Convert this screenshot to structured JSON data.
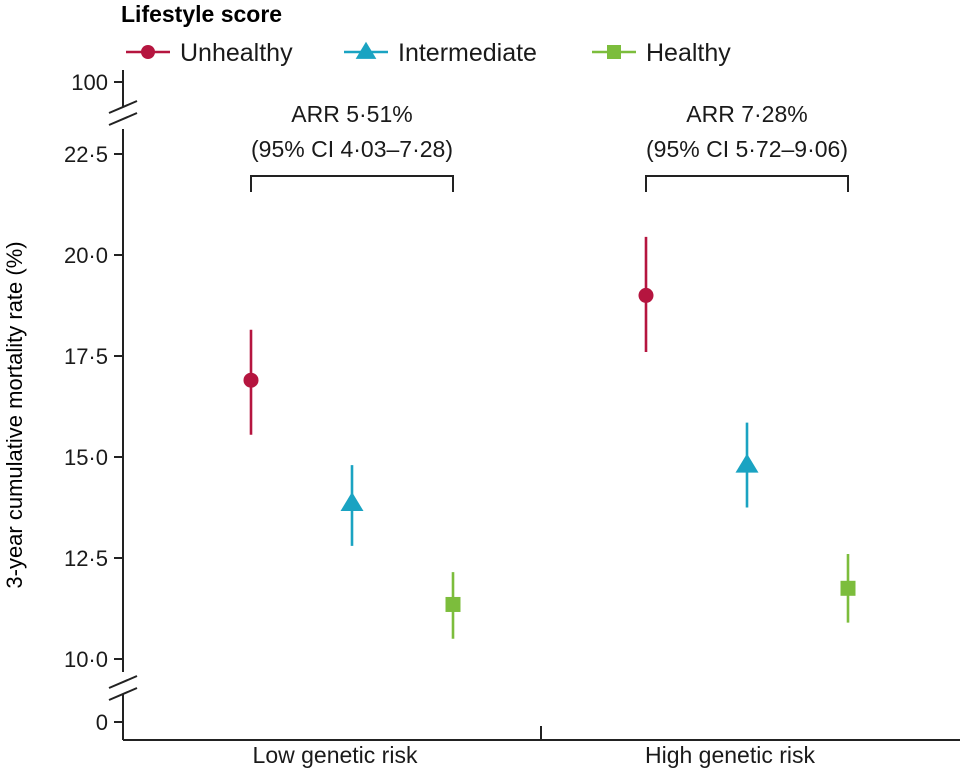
{
  "chart_data": {
    "type": "scatter",
    "ylabel": "3-year cumulative mortality rate (%)",
    "categories": [
      "Low genetic risk",
      "High genetic risk"
    ],
    "legend_title": "Lifestyle score",
    "legend_placement": "top-left",
    "y_break": {
      "lower": 10.0,
      "upper": 22.5
    },
    "yticks": [
      {
        "value": 0,
        "label": "0"
      },
      {
        "value": 10.0,
        "label": "10·0"
      },
      {
        "value": 12.5,
        "label": "12·5"
      },
      {
        "value": 15.0,
        "label": "15·0"
      },
      {
        "value": 17.5,
        "label": "17·5"
      },
      {
        "value": 20.0,
        "label": "20·0"
      },
      {
        "value": 22.5,
        "label": "22·5"
      },
      {
        "value": 100,
        "label": "100"
      }
    ],
    "series": [
      {
        "name": "Unhealthy",
        "marker": "circle",
        "color": "#b5153f",
        "values": [
          16.9,
          19.0
        ],
        "ci_low": [
          15.55,
          17.6
        ],
        "ci_high": [
          18.15,
          20.45
        ]
      },
      {
        "name": "Intermediate",
        "marker": "triangle",
        "color": "#1aa3c2",
        "values": [
          13.85,
          14.8
        ],
        "ci_low": [
          12.8,
          13.75
        ],
        "ci_high": [
          14.8,
          15.85
        ]
      },
      {
        "name": "Healthy",
        "marker": "square",
        "color": "#7cbd3c",
        "values": [
          11.35,
          11.75
        ],
        "ci_low": [
          10.5,
          10.9
        ],
        "ci_high": [
          12.15,
          12.6
        ]
      }
    ],
    "annotations": [
      {
        "category": "Low genetic risk",
        "line1": "ARR 5·51%",
        "line2": "(95% CI 4·03–7·28)"
      },
      {
        "category": "High genetic risk",
        "line1": "ARR 7·28%",
        "line2": "(95% CI 5·72–9·06)"
      }
    ]
  }
}
